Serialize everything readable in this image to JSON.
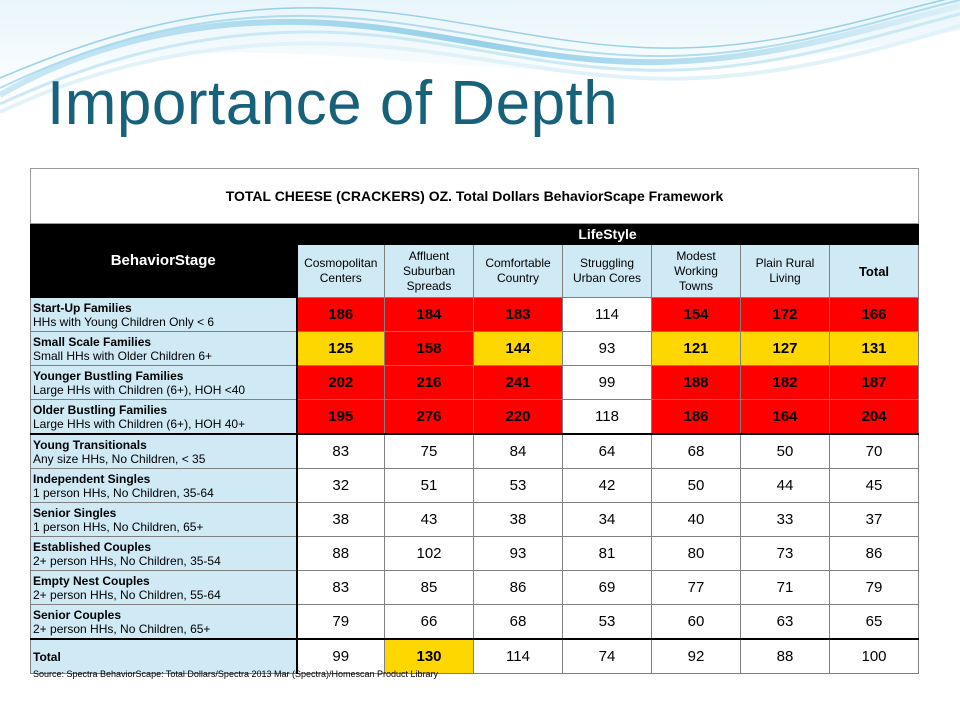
{
  "slide": {
    "title": "Importance of Depth"
  },
  "table": {
    "title": "TOTAL CHEESE (CRACKERS) OZ.  Total Dollars BehaviorScape Framework",
    "lifestyle_label": "LifeStyle",
    "behaviorstage_label": "BehaviorStage",
    "columns": [
      [
        "Cosmopolitan",
        "Centers"
      ],
      [
        "Affluent",
        "Suburban",
        "Spreads"
      ],
      [
        "Comfortable",
        "Country"
      ],
      [
        "Struggling",
        "Urban Cores"
      ],
      [
        "Modest",
        "Working",
        "Towns"
      ],
      [
        "Plain Rural",
        "Living"
      ],
      [
        "Total"
      ]
    ],
    "rows": [
      {
        "name": "Start-Up Families",
        "desc": "HHs with Young Children Only < 6",
        "values": [
          "186",
          "184",
          "183",
          "114",
          "154",
          "172",
          "166"
        ],
        "colors": [
          "red",
          "red",
          "red",
          "white",
          "red",
          "red",
          "red"
        ]
      },
      {
        "name": "Small Scale Families",
        "desc": "Small HHs with Older Children 6+",
        "values": [
          "125",
          "158",
          "144",
          "93",
          "121",
          "127",
          "131"
        ],
        "colors": [
          "yellow",
          "red",
          "yellow",
          "white",
          "yellow",
          "yellow",
          "yellow"
        ]
      },
      {
        "name": "Younger Bustling Families",
        "desc": "Large HHs with Children (6+), HOH <40",
        "values": [
          "202",
          "216",
          "241",
          "99",
          "188",
          "182",
          "187"
        ],
        "colors": [
          "red",
          "red",
          "red",
          "white",
          "red",
          "red",
          "red"
        ]
      },
      {
        "name": "Older Bustling Families",
        "desc": "Large HHs with Children (6+), HOH 40+",
        "values": [
          "195",
          "276",
          "220",
          "118",
          "186",
          "164",
          "204"
        ],
        "colors": [
          "red",
          "red",
          "red",
          "white",
          "red",
          "red",
          "red"
        ]
      },
      {
        "name": "Young Transitionals",
        "desc": "Any size HHs, No Children, < 35",
        "values": [
          "83",
          "75",
          "84",
          "64",
          "68",
          "50",
          "70"
        ],
        "colors": [
          "white",
          "white",
          "white",
          "white",
          "white",
          "white",
          "white"
        ]
      },
      {
        "name": "Independent Singles",
        "desc": "1 person HHs, No Children, 35-64",
        "values": [
          "32",
          "51",
          "53",
          "42",
          "50",
          "44",
          "45"
        ],
        "colors": [
          "white",
          "white",
          "white",
          "white",
          "white",
          "white",
          "white"
        ]
      },
      {
        "name": "Senior Singles",
        "desc": "1 person HHs, No Children, 65+",
        "values": [
          "38",
          "43",
          "38",
          "34",
          "40",
          "33",
          "37"
        ],
        "colors": [
          "white",
          "white",
          "white",
          "white",
          "white",
          "white",
          "white"
        ]
      },
      {
        "name": "Established Couples",
        "desc": "2+ person HHs, No Children, 35-54",
        "values": [
          "88",
          "102",
          "93",
          "81",
          "80",
          "73",
          "86"
        ],
        "colors": [
          "white",
          "white",
          "white",
          "white",
          "white",
          "white",
          "white"
        ]
      },
      {
        "name": "Empty Nest Couples",
        "desc": "2+ person HHs, No Children, 55-64",
        "values": [
          "83",
          "85",
          "86",
          "69",
          "77",
          "71",
          "79"
        ],
        "colors": [
          "white",
          "white",
          "white",
          "white",
          "white",
          "white",
          "white"
        ]
      },
      {
        "name": "Senior Couples",
        "desc": "2+ person HHs, No Children, 65+",
        "values": [
          "79",
          "66",
          "68",
          "53",
          "60",
          "63",
          "65"
        ],
        "colors": [
          "white",
          "white",
          "white",
          "white",
          "white",
          "white",
          "white"
        ]
      },
      {
        "name": "Total",
        "desc": "",
        "values": [
          "99",
          "130",
          "114",
          "74",
          "92",
          "88",
          "100"
        ],
        "colors": [
          "white",
          "yellow",
          "white",
          "white",
          "white",
          "white",
          "white"
        ]
      }
    ],
    "source": "Source: Spectra BehaviorScape: Total Dollars/Spectra 2013 Mar (Spectra)/Homescan Product Library"
  },
  "colors": {
    "title": "#17627a",
    "header_fill": "#cfe9f5",
    "high_index": "#ff0000",
    "mid_index": "#ffd700"
  }
}
